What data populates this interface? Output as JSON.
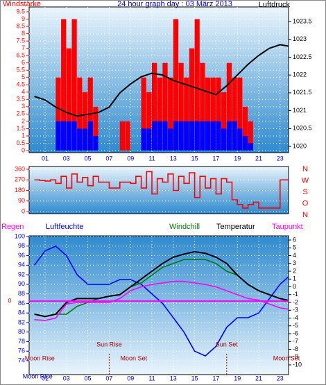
{
  "chart_data": [
    {
      "type": "combo",
      "title": "24 hour graph day : 03 März 2013",
      "y_label": "Windstärke",
      "y2_label": "Luftdruck",
      "xlim": [
        0,
        24
      ],
      "xticks": [
        {
          "value": 1,
          "label": "01"
        },
        {
          "value": 3,
          "label": "03"
        },
        {
          "value": 5,
          "label": "05"
        },
        {
          "value": 7,
          "label": "07"
        },
        {
          "value": 9,
          "label": "09"
        },
        {
          "value": 11,
          "label": "11"
        },
        {
          "value": 13,
          "label": "13"
        },
        {
          "value": 15,
          "label": "15"
        },
        {
          "value": 17,
          "label": "17"
        },
        {
          "value": 19,
          "label": "19"
        },
        {
          "value": 21,
          "label": "21"
        },
        {
          "value": 23,
          "label": "23"
        }
      ],
      "ylim": [
        0,
        9.5
      ],
      "yticks": [
        0,
        0.5,
        1,
        1.5,
        2,
        2.5,
        3,
        3.5,
        4,
        4.5,
        5,
        5.5,
        6,
        6.5,
        7,
        7.5,
        8,
        8.5,
        9,
        9.5
      ],
      "y2lim": [
        1020,
        1023.5
      ],
      "y2ticks": [
        1020,
        1020.5,
        1021,
        1021.5,
        1022,
        1022.5,
        1023,
        1023.5
      ],
      "grid": true,
      "series": [
        {
          "type": "bar",
          "color": "#ff0000",
          "x": [
            0,
            0.5,
            1,
            1.5,
            2,
            2.5,
            3,
            3.5,
            4,
            4.5,
            5,
            5.5,
            6,
            6.5,
            7,
            7.5,
            8,
            8.5,
            9,
            9.5,
            10,
            10.5,
            11,
            11.5,
            12,
            12.5,
            13,
            13.5,
            14,
            14.5,
            15,
            15.5,
            16,
            16.5,
            17,
            17.5,
            18,
            18.5,
            19,
            19.5,
            20,
            20.5,
            21,
            21.5,
            22,
            22.5,
            23,
            23.5
          ],
          "values": [
            0,
            0,
            0,
            0,
            5,
            9,
            7,
            9,
            5,
            4,
            5,
            3,
            0,
            0,
            0,
            0,
            2,
            2,
            0,
            0,
            5,
            4,
            6,
            5,
            6,
            5,
            9,
            6,
            5,
            7,
            9,
            6,
            5,
            5,
            5,
            4,
            6,
            5,
            5,
            3,
            2,
            0,
            0,
            0,
            0,
            0,
            0,
            0
          ]
        },
        {
          "type": "bar",
          "color": "#0000ff",
          "x": [
            0,
            0.5,
            1,
            1.5,
            2,
            2.5,
            3,
            3.5,
            4,
            4.5,
            5,
            5.5,
            6,
            6.5,
            7,
            7.5,
            8,
            8.5,
            9,
            9.5,
            10,
            10.5,
            11,
            11.5,
            12,
            12.5,
            13,
            13.5,
            14,
            14.5,
            15,
            15.5,
            16,
            16.5,
            17,
            17.5,
            18,
            18.5,
            19,
            19.5,
            20,
            20.5,
            21,
            21.5,
            22,
            22.5,
            23,
            23.5
          ],
          "values": [
            0,
            0,
            0,
            0,
            2,
            2,
            2,
            2,
            1.5,
            1.5,
            2,
            1,
            0,
            0,
            0,
            0,
            0,
            0,
            0,
            0,
            1.5,
            1.5,
            2,
            2,
            2,
            1.5,
            2,
            2,
            2,
            2,
            2,
            2,
            2,
            2,
            2,
            1.5,
            2,
            2,
            1.5,
            1,
            0.5,
            0,
            0,
            0,
            0,
            0,
            0,
            0
          ]
        },
        {
          "type": "line",
          "color": "#000000",
          "axis": "y2",
          "x": [
            0,
            1,
            2,
            3,
            4,
            5,
            6,
            7,
            8,
            9,
            10,
            11,
            12,
            13,
            14,
            15,
            16,
            17,
            18,
            19,
            20,
            21,
            22,
            23,
            24
          ],
          "values": [
            1021.4,
            1021.3,
            1021.1,
            1020.95,
            1020.85,
            1020.9,
            1020.95,
            1021.1,
            1021.5,
            1021.75,
            1021.95,
            1022.05,
            1022,
            1021.85,
            1021.75,
            1021.65,
            1021.55,
            1021.45,
            1021.7,
            1022,
            1022.3,
            1022.55,
            1022.75,
            1022.85,
            1022.8
          ]
        }
      ]
    },
    {
      "type": "line",
      "xlim": [
        0,
        24
      ],
      "ylim": [
        0,
        360
      ],
      "yticks": [
        0,
        90,
        180,
        270,
        360
      ],
      "compass": [
        "N",
        "W",
        "S",
        "O",
        "N"
      ],
      "grid": true,
      "series": [
        {
          "type": "line",
          "color": "#ff0000",
          "x": [
            0,
            0.5,
            1,
            1.5,
            2,
            2.5,
            3,
            3.5,
            4,
            4.5,
            5,
            5.5,
            6,
            6.5,
            7,
            7.5,
            8,
            8.5,
            9,
            9.5,
            10,
            10.5,
            11,
            11.5,
            12,
            12.5,
            13,
            13.5,
            14,
            14.5,
            15,
            15.5,
            16,
            16.5,
            17,
            17.5,
            18,
            18.5,
            19,
            19.5,
            20,
            20.5,
            21,
            21.5,
            22,
            22.5,
            23,
            23.5
          ],
          "values": [
            270,
            265,
            260,
            270,
            240,
            300,
            200,
            320,
            250,
            290,
            220,
            300,
            250,
            250,
            200,
            200,
            250,
            250,
            240,
            300,
            200,
            340,
            150,
            280,
            250,
            320,
            180,
            300,
            240,
            330,
            120,
            300,
            200,
            280,
            150,
            280,
            250,
            100,
            60,
            30,
            60,
            80,
            30,
            30,
            30,
            30,
            270,
            270
          ]
        }
      ]
    },
    {
      "type": "line",
      "rain_label": "Regen",
      "rain_ticks": [
        0
      ],
      "xlim": [
        0,
        24
      ],
      "xticks": [
        {
          "value": 1,
          "label": "01"
        },
        {
          "value": 3,
          "label": "03"
        },
        {
          "value": 5,
          "label": "05"
        },
        {
          "value": 7,
          "label": "07"
        },
        {
          "value": 9,
          "label": "09"
        },
        {
          "value": 11,
          "label": "11"
        },
        {
          "value": 13,
          "label": "13"
        },
        {
          "value": 15,
          "label": "15"
        },
        {
          "value": 17,
          "label": "17"
        },
        {
          "value": 19,
          "label": "19"
        },
        {
          "value": 21,
          "label": "21"
        },
        {
          "value": 23,
          "label": "23"
        }
      ],
      "ylim": [
        74,
        100
      ],
      "yticks": [
        74,
        76,
        78,
        80,
        82,
        84,
        86,
        88,
        90,
        92,
        94,
        96,
        98,
        100
      ],
      "y2lim": [
        -10,
        6
      ],
      "y2ticks": [
        -10,
        -9,
        -8,
        -7,
        -6,
        -5,
        -4,
        -3,
        -2,
        -1,
        0,
        1,
        2,
        3,
        4,
        5,
        6
      ],
      "grid": true,
      "series": [
        {
          "name": "Luftfeuchte",
          "type": "line",
          "color": "#0000ff",
          "x": [
            0,
            1,
            2,
            3,
            4,
            5,
            6,
            7,
            8,
            9,
            10,
            11,
            12,
            13,
            14,
            15,
            16,
            17,
            18,
            19,
            20,
            21,
            22,
            23,
            24
          ],
          "values": [
            94,
            97,
            98,
            96,
            92,
            90,
            90,
            90,
            91,
            91,
            90,
            88,
            86,
            83,
            80,
            76,
            75,
            77,
            81,
            83,
            83,
            84,
            87,
            90,
            92
          ]
        },
        {
          "name": "Windchill",
          "type": "line",
          "color": "#008000",
          "axis": "y2",
          "x": [
            0,
            1,
            2,
            3,
            4,
            5,
            6,
            7,
            8,
            9,
            10,
            11,
            12,
            13,
            14,
            15,
            16,
            17,
            18,
            19,
            20,
            21,
            22,
            23,
            24
          ],
          "values": [
            -3.5,
            -3.8,
            -3.5,
            -3.5,
            -2.5,
            -2,
            -1.5,
            -1.2,
            -1,
            0,
            0.5,
            1.5,
            2.5,
            3,
            3.5,
            3.5,
            3.5,
            3,
            2,
            1.5,
            0.3,
            -0.5,
            -1,
            -1.5,
            -1.8
          ]
        },
        {
          "name": "Temperatur",
          "type": "line",
          "color": "#000000",
          "axis": "y2",
          "x": [
            0,
            1,
            2,
            3,
            4,
            5,
            6,
            7,
            8,
            9,
            10,
            11,
            12,
            13,
            14,
            15,
            16,
            17,
            18,
            19,
            20,
            21,
            22,
            23,
            24
          ],
          "values": [
            -3.5,
            -3.8,
            -3.5,
            -2,
            -1.5,
            -1.5,
            -1.5,
            -1.2,
            -1,
            0,
            1,
            2,
            3,
            3.8,
            4.2,
            4.5,
            4.3,
            3.8,
            3,
            1.5,
            0.3,
            -0.5,
            -1,
            -1.5,
            -1.8
          ]
        },
        {
          "name": "Taupunkt",
          "type": "line",
          "color": "#ff00ff",
          "axis": "y2",
          "x": [
            0,
            1,
            2,
            3,
            4,
            5,
            6,
            7,
            8,
            9,
            10,
            11,
            12,
            13,
            14,
            15,
            16,
            17,
            18,
            19,
            20,
            21,
            22,
            23,
            24
          ],
          "values": [
            -4.2,
            -4.3,
            -4,
            -2.2,
            -2,
            -2,
            -2,
            -2,
            -1.5,
            -0.5,
            0,
            0.3,
            0.5,
            0.7,
            0.7,
            0.5,
            0.3,
            0,
            -0.5,
            -1,
            -1.5,
            -1.7,
            -2.2,
            -2.7,
            -2.9
          ]
        }
      ],
      "annotations": [
        {
          "label": "Moon Rise",
          "hour": 0.5,
          "row": "low"
        },
        {
          "label": "Sun Rise",
          "hour": 7,
          "row": "high",
          "line": true
        },
        {
          "label": "Moon Set",
          "hour": 9.3,
          "row": "low"
        },
        {
          "label": "Sun Set",
          "hour": 18,
          "row": "high",
          "line": true
        },
        {
          "label": "Moon Set",
          "hour": 23.6,
          "row": "low"
        },
        {
          "label": "Moon Rise",
          "hour": 0.3,
          "row": "bottom"
        }
      ]
    }
  ]
}
